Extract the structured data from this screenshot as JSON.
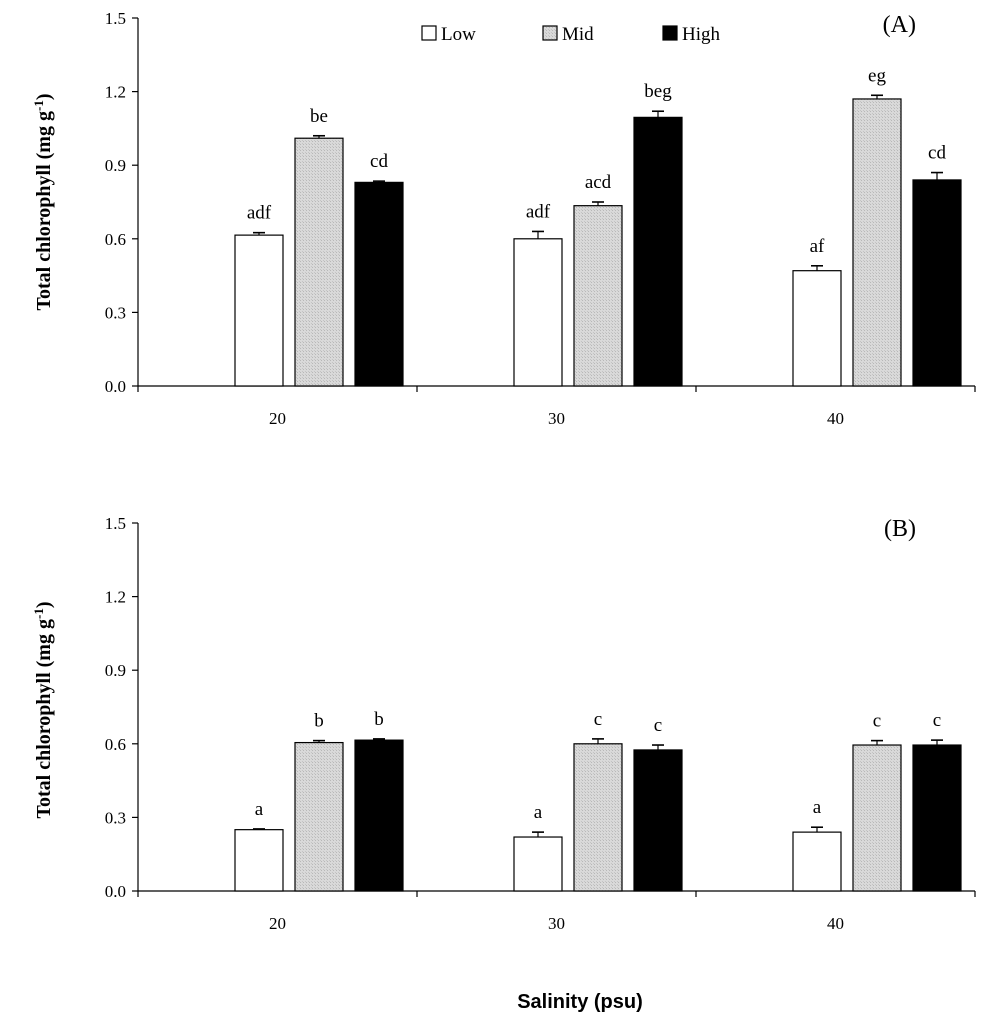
{
  "chart_data": [
    {
      "type": "bar",
      "panel_label": "(A)",
      "categories": [
        "20",
        "30",
        "40"
      ],
      "ylabel": "Total chlorophyll (mg g",
      "ylabel_sup": "-1",
      "ylabel_close": ")",
      "xlabel": "",
      "ylim": [
        0,
        1.5
      ],
      "yticks": [
        "0.0",
        "0.3",
        "0.6",
        "0.9",
        "1.2",
        "1.5"
      ],
      "ytick_values": [
        0,
        0.3,
        0.6,
        0.9,
        1.2,
        1.5
      ],
      "legend": {
        "placement": "top-center",
        "entries": [
          "Low",
          "Mid",
          "High"
        ]
      },
      "series": [
        {
          "name": "Low",
          "color": "#ffffff",
          "values": [
            0.615,
            0.6,
            0.47
          ],
          "errors": [
            0.01,
            0.03,
            0.02
          ],
          "labels": [
            "adf",
            "adf",
            "af"
          ]
        },
        {
          "name": "Mid",
          "color": "#d9d9d9",
          "values": [
            1.01,
            0.735,
            1.17
          ],
          "errors": [
            0.01,
            0.015,
            0.015
          ],
          "labels": [
            "be",
            "acd",
            "eg"
          ]
        },
        {
          "name": "High",
          "color": "#000000",
          "values": [
            0.83,
            1.095,
            0.84
          ],
          "errors": [
            0.005,
            0.025,
            0.03
          ],
          "labels": [
            "cd",
            "beg",
            "cd"
          ]
        }
      ]
    },
    {
      "type": "bar",
      "panel_label": "(B)",
      "categories": [
        "20",
        "30",
        "40"
      ],
      "ylabel": "Total chlorophyll  (mg g",
      "ylabel_sup": "-1",
      "ylabel_close": ")",
      "xlabel": "Salinity (psu)",
      "ylim": [
        0,
        1.5
      ],
      "yticks": [
        "0.0",
        "0.3",
        "0.6",
        "0.9",
        "1.2",
        "1.5"
      ],
      "ytick_values": [
        0,
        0.3,
        0.6,
        0.9,
        1.2,
        1.5
      ],
      "series": [
        {
          "name": "Low",
          "color": "#ffffff",
          "values": [
            0.25,
            0.22,
            0.24
          ],
          "errors": [
            0.003,
            0.02,
            0.02
          ],
          "labels": [
            "a",
            "a",
            "a"
          ]
        },
        {
          "name": "Mid",
          "color": "#d9d9d9",
          "values": [
            0.605,
            0.6,
            0.595
          ],
          "errors": [
            0.008,
            0.02,
            0.018
          ],
          "labels": [
            "b",
            "c",
            "c"
          ]
        },
        {
          "name": "High",
          "color": "#000000",
          "values": [
            0.615,
            0.575,
            0.595
          ],
          "errors": [
            0.005,
            0.02,
            0.02
          ],
          "labels": [
            "b",
            "c",
            "c"
          ]
        }
      ]
    }
  ]
}
